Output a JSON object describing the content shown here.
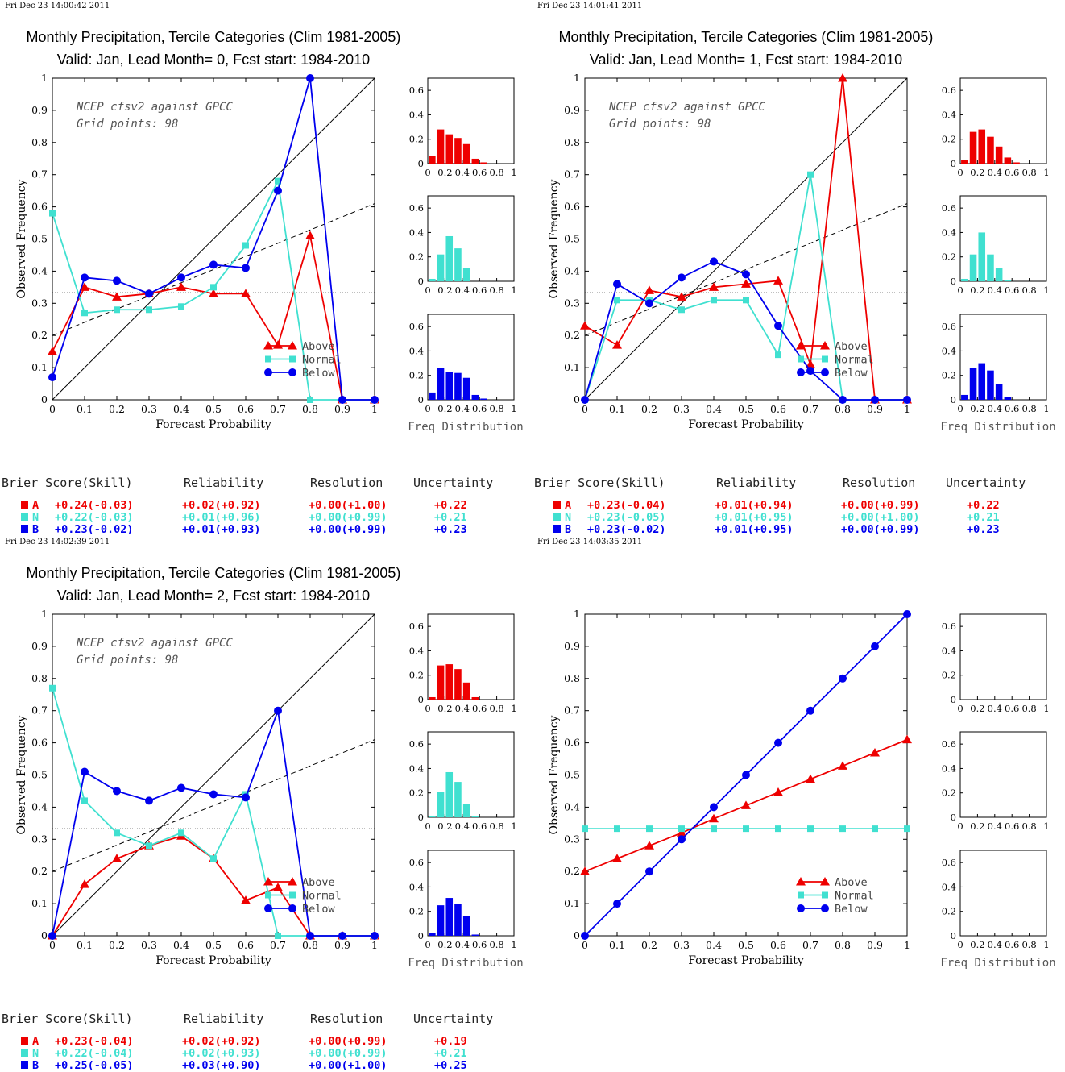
{
  "colors": {
    "above": "#ee0000",
    "normal": "#40e0d0",
    "below": "#0000ee"
  },
  "panel_labels": {
    "xlabel": "Forecast Probability",
    "ylabel": "Observed Frequency",
    "freq_label": "Freq Distribution",
    "legend": [
      "Above",
      "Normal",
      "Below"
    ],
    "score_headers": [
      "Brier Score(Skill)",
      "Reliability",
      "Resolution",
      "Uncertainty"
    ],
    "category_letters": [
      "A",
      "N",
      "B"
    ]
  },
  "chart_data": [
    {
      "type": "line",
      "timestamp": "Fri Dec 23 14:00:42 2011",
      "title": "Monthly Precipitation, Tercile Categories (Clim 1981-2005)",
      "subtitle": "Valid: Jan, Lead Month= 0, Fcst start: 1984-2010",
      "note_line1": "NCEP cfsv2 against GPCC",
      "note_line2": "Grid points:   98",
      "xlim": [
        0,
        1
      ],
      "ylim": [
        0,
        1
      ],
      "x": [
        0,
        0.1,
        0.2,
        0.3,
        0.4,
        0.5,
        0.6,
        0.7,
        0.8,
        0.9,
        1.0
      ],
      "series": [
        {
          "name": "Above",
          "values": [
            0.15,
            0.35,
            0.32,
            0.33,
            0.35,
            0.33,
            0.33,
            0.17,
            0.51,
            0,
            0
          ]
        },
        {
          "name": "Normal",
          "values": [
            0.58,
            0.27,
            0.28,
            0.28,
            0.29,
            0.35,
            0.48,
            0.68,
            0,
            0,
            0
          ]
        },
        {
          "name": "Below",
          "values": [
            0.07,
            0.38,
            0.37,
            0.33,
            0.38,
            0.42,
            0.41,
            0.65,
            1.0,
            0,
            0
          ]
        }
      ],
      "reference_line": [
        0,
        0,
        1,
        1
      ],
      "climatology": 0.333,
      "dashed_line": [
        0,
        0.2,
        1,
        0.61
      ],
      "hist_ylim": [
        0,
        0.7
      ],
      "hist_bins": [
        0.05,
        0.15,
        0.25,
        0.35,
        0.45,
        0.55,
        0.65,
        0.75,
        0.85,
        0.95
      ],
      "hist": [
        [
          0.06,
          0.28,
          0.24,
          0.21,
          0.16,
          0.04,
          0.01,
          0,
          0,
          0
        ],
        [
          0.02,
          0.22,
          0.37,
          0.27,
          0.11,
          0,
          0,
          0,
          0,
          0
        ],
        [
          0.06,
          0.26,
          0.23,
          0.22,
          0.18,
          0.04,
          0.01,
          0,
          0,
          0
        ]
      ],
      "scores": [
        {
          "letter": "A",
          "brier": "+0.24(-0.03)",
          "reliability": "+0.02(+0.92)",
          "resolution": "+0.00(+1.00)",
          "uncertainty": "+0.22"
        },
        {
          "letter": "N",
          "brier": "+0.22(-0.03)",
          "reliability": "+0.01(+0.96)",
          "resolution": "+0.00(+0.99)",
          "uncertainty": "+0.21"
        },
        {
          "letter": "B",
          "brier": "+0.23(-0.02)",
          "reliability": "+0.01(+0.93)",
          "resolution": "+0.00(+0.99)",
          "uncertainty": "+0.23"
        }
      ]
    },
    {
      "type": "line",
      "timestamp": "Fri Dec 23 14:01:41 2011",
      "title": "Monthly Precipitation, Tercile Categories (Clim 1981-2005)",
      "subtitle": "Valid: Jan, Lead Month= 1, Fcst start: 1984-2010",
      "note_line1": "NCEP cfsv2 against GPCC",
      "note_line2": "Grid points:   98",
      "xlim": [
        0,
        1
      ],
      "ylim": [
        0,
        1
      ],
      "x": [
        0,
        0.1,
        0.2,
        0.3,
        0.4,
        0.5,
        0.6,
        0.7,
        0.8,
        0.9,
        1.0
      ],
      "series": [
        {
          "name": "Above",
          "values": [
            0.23,
            0.17,
            0.34,
            0.32,
            0.35,
            0.36,
            0.37,
            0.11,
            1.0,
            0,
            0
          ]
        },
        {
          "name": "Normal",
          "values": [
            0,
            0.31,
            0.31,
            0.28,
            0.31,
            0.31,
            0.14,
            0.7,
            0,
            0,
            0
          ]
        },
        {
          "name": "Below",
          "values": [
            0,
            0.36,
            0.3,
            0.38,
            0.43,
            0.39,
            0.23,
            0.09,
            0,
            0,
            0
          ]
        }
      ],
      "reference_line": [
        0,
        0,
        1,
        1
      ],
      "climatology": 0.333,
      "dashed_line": [
        0,
        0.2,
        1,
        0.61
      ],
      "hist_ylim": [
        0,
        0.7
      ],
      "hist_bins": [
        0.05,
        0.15,
        0.25,
        0.35,
        0.45,
        0.55,
        0.65,
        0.75,
        0.85,
        0.95
      ],
      "hist": [
        [
          0.03,
          0.26,
          0.28,
          0.22,
          0.14,
          0.05,
          0.01,
          0,
          0,
          0
        ],
        [
          0.02,
          0.22,
          0.4,
          0.22,
          0.11,
          0.01,
          0,
          0,
          0,
          0
        ],
        [
          0.04,
          0.26,
          0.3,
          0.24,
          0.13,
          0.02,
          0,
          0,
          0,
          0
        ]
      ],
      "scores": [
        {
          "letter": "A",
          "brier": "+0.23(-0.04)",
          "reliability": "+0.01(+0.94)",
          "resolution": "+0.00(+0.99)",
          "uncertainty": "+0.22"
        },
        {
          "letter": "N",
          "brier": "+0.23(-0.05)",
          "reliability": "+0.01(+0.95)",
          "resolution": "+0.00(+1.00)",
          "uncertainty": "+0.21"
        },
        {
          "letter": "B",
          "brier": "+0.23(-0.02)",
          "reliability": "+0.01(+0.95)",
          "resolution": "+0.00(+0.99)",
          "uncertainty": "+0.23"
        }
      ]
    },
    {
      "type": "line",
      "timestamp": "Fri Dec 23 14:02:39 2011",
      "title": "Monthly Precipitation, Tercile Categories (Clim 1981-2005)",
      "subtitle": "Valid: Jan, Lead Month= 2, Fcst start: 1984-2010",
      "note_line1": "NCEP cfsv2 against GPCC",
      "note_line2": "Grid points:   98",
      "xlim": [
        0,
        1
      ],
      "ylim": [
        0,
        1
      ],
      "x": [
        0,
        0.1,
        0.2,
        0.3,
        0.4,
        0.5,
        0.6,
        0.7,
        0.8,
        0.9,
        1.0
      ],
      "series": [
        {
          "name": "Above",
          "values": [
            0,
            0.16,
            0.24,
            0.28,
            0.31,
            0.24,
            0.11,
            0.15,
            0,
            0,
            0
          ]
        },
        {
          "name": "Normal",
          "values": [
            0.77,
            0.42,
            0.32,
            0.28,
            0.32,
            0.24,
            0.44,
            0,
            0,
            0,
            0
          ]
        },
        {
          "name": "Below",
          "values": [
            0,
            0.51,
            0.45,
            0.42,
            0.46,
            0.44,
            0.43,
            0.7,
            0,
            0,
            0
          ]
        }
      ],
      "reference_line": [
        0,
        0,
        1,
        1
      ],
      "climatology": 0.333,
      "dashed_line": [
        0,
        0.2,
        1,
        0.61
      ],
      "hist_ylim": [
        0,
        0.7
      ],
      "hist_bins": [
        0.05,
        0.15,
        0.25,
        0.35,
        0.45,
        0.55,
        0.65,
        0.75,
        0.85,
        0.95
      ],
      "hist": [
        [
          0.02,
          0.28,
          0.29,
          0.25,
          0.14,
          0.02,
          0,
          0,
          0,
          0
        ],
        [
          0.01,
          0.21,
          0.37,
          0.29,
          0.11,
          0.01,
          0,
          0,
          0,
          0
        ],
        [
          0.02,
          0.25,
          0.31,
          0.26,
          0.16,
          0.01,
          0,
          0,
          0,
          0
        ]
      ],
      "scores": [
        {
          "letter": "A",
          "brier": "+0.23(-0.04)",
          "reliability": "+0.02(+0.92)",
          "resolution": "+0.00(+0.99)",
          "uncertainty": "+0.19"
        },
        {
          "letter": "N",
          "brier": "+0.22(-0.04)",
          "reliability": "+0.02(+0.93)",
          "resolution": "+0.00(+0.99)",
          "uncertainty": "+0.21"
        },
        {
          "letter": "B",
          "brier": "+0.25(-0.05)",
          "reliability": "+0.03(+0.90)",
          "resolution": "+0.00(+1.00)",
          "uncertainty": "+0.25"
        }
      ]
    },
    {
      "type": "line",
      "timestamp": "Fri Dec 23 14:03:35 2011",
      "title": "",
      "subtitle": "",
      "note_line1": "",
      "note_line2": "",
      "xlim": [
        0,
        1
      ],
      "ylim": [
        0,
        1
      ],
      "x": [
        0,
        0.1,
        0.2,
        0.3,
        0.4,
        0.5,
        0.6,
        0.7,
        0.8,
        0.9,
        1.0
      ],
      "series": [
        {
          "name": "Above",
          "values": [
            0.2,
            0.24,
            0.28,
            0.32,
            0.364,
            0.405,
            0.446,
            0.487,
            0.528,
            0.569,
            0.61
          ]
        },
        {
          "name": "Normal",
          "values": [
            0.333,
            0.333,
            0.333,
            0.333,
            0.333,
            0.333,
            0.333,
            0.333,
            0.333,
            0.333,
            0.333
          ]
        },
        {
          "name": "Below",
          "values": [
            0,
            0.1,
            0.2,
            0.3,
            0.4,
            0.5,
            0.6,
            0.7,
            0.8,
            0.9,
            1.0
          ]
        }
      ],
      "reference_line": null,
      "climatology": null,
      "dashed_line": null,
      "hist_ylim": [
        0,
        0.7
      ],
      "hist_bins": [
        0.05,
        0.15,
        0.25,
        0.35,
        0.45,
        0.55,
        0.65,
        0.75,
        0.85,
        0.95
      ],
      "hist": [
        [],
        [],
        []
      ],
      "scores": []
    }
  ]
}
